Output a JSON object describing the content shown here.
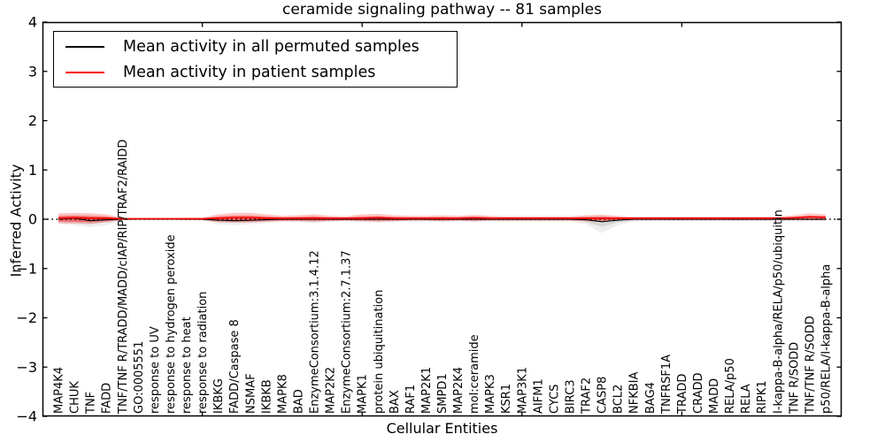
{
  "figure": {
    "title": "ceramide signaling pathway -- 81 samples",
    "xlabel": "Cellular Entities",
    "ylabel": "Inferred Activity"
  },
  "legend": {
    "items": [
      {
        "label": "Mean activity in all permuted samples",
        "color": "#000000"
      },
      {
        "label": "Mean activity in patient samples",
        "color": "#ff0000"
      }
    ]
  },
  "chart_data": {
    "type": "line",
    "title": "ceramide signaling pathway -- 81 samples",
    "xlabel": "Cellular Entities",
    "ylabel": "Inferred Activity",
    "ylim": [
      -4,
      4
    ],
    "xlim": [
      0,
      50
    ],
    "ytick_labels": [
      "−4",
      "−3",
      "−2",
      "−1",
      "0",
      "1",
      "2",
      "3",
      "4"
    ],
    "ytick_values": [
      -4,
      -3,
      -2,
      -1,
      0,
      1,
      2,
      3,
      4
    ],
    "xtick_positions": [
      10,
      20,
      30,
      40
    ],
    "grid": false,
    "legend_position": "upper left",
    "zero_reference_line": {
      "value": 0,
      "style": "dotted",
      "color": "#000000"
    },
    "categories": [
      "MAP4K4",
      "CHUK",
      "TNF",
      "FADD",
      "TNF/TNF R/TRADD/MADD/cIAP/RIP/TRAF2/RAIDD",
      "GO:0005551",
      "response to UV",
      "response to hydrogen peroxide",
      "response to heat",
      "response to radiation",
      "IKBKG",
      "FADD/Caspase 8",
      "NSMAF",
      "IKBKB",
      "MAPK8",
      "BAD",
      "EnzymeConsortium:3.1.4.12",
      "MAP2K2",
      "EnzymeConsortium:2.7.1.37",
      "MAPK1",
      "protein ubiquitination",
      "BAX",
      "RAF1",
      "MAP2K1",
      "SMPD1",
      "MAP2K4",
      "mol:ceramide",
      "MAPK3",
      "KSR1",
      "MAP3K1",
      "AIFM1",
      "CYCS",
      "BIRC3",
      "TRAF2",
      "CASP8",
      "BCL2",
      "NFKBIA",
      "BAG4",
      "TNFRSF1A",
      "TRADD",
      "CRADD",
      "MADD",
      "RELA/p50",
      "RELA",
      "RIPK1",
      "I-kappa-B-alpha/RELA/p50/ubiquitin",
      "TNF R/SODD",
      "TNF/TNF R/SODD",
      "p50/RELA/I-kappa-B-alpha"
    ],
    "series": [
      {
        "name": "Mean activity in all permuted samples",
        "color": "#000000",
        "values": [
          0,
          0.02,
          -0.03,
          -0.01,
          0,
          0,
          0,
          0,
          0,
          0,
          -0.02,
          -0.03,
          -0.02,
          -0.01,
          0,
          0,
          0,
          0,
          0,
          0,
          0,
          0,
          0,
          0,
          0,
          0,
          0,
          0,
          0,
          0,
          0,
          0,
          0,
          -0.01,
          -0.05,
          -0.02,
          0,
          0,
          0,
          0,
          0,
          0,
          0,
          0,
          0,
          0,
          0,
          0,
          0
        ]
      },
      {
        "name": "Mean activity in patient samples",
        "color": "#ff0000",
        "values": [
          0.02,
          0.03,
          0.02,
          0.02,
          0.01,
          0.01,
          0.01,
          0.01,
          0.01,
          0.01,
          0.02,
          0.03,
          0.03,
          0.02,
          0.02,
          0.02,
          0.02,
          0.02,
          0.02,
          0.02,
          0.03,
          0.02,
          0.02,
          0.02,
          0.02,
          0.02,
          0.03,
          0.02,
          0.02,
          0.02,
          0.02,
          0.02,
          0.02,
          0.02,
          0.02,
          0.02,
          0.02,
          0.02,
          0.02,
          0.02,
          0.02,
          0.02,
          0.02,
          0.02,
          0.02,
          0.02,
          0.03,
          0.05,
          0.04
        ]
      }
    ],
    "bands": [
      {
        "name": "permuted-confidence-band",
        "color": "#999999",
        "upper": [
          0.08,
          0.1,
          0.08,
          0.06,
          0.02,
          0.01,
          0.01,
          0.01,
          0.01,
          0.02,
          0.06,
          0.08,
          0.08,
          0.06,
          0.04,
          0.05,
          0.06,
          0.04,
          0.04,
          0.05,
          0.06,
          0.05,
          0.04,
          0.04,
          0.05,
          0.04,
          0.05,
          0.04,
          0.04,
          0.04,
          0.04,
          0.04,
          0.04,
          0.06,
          0.08,
          0.05,
          0.03,
          0.03,
          0.03,
          0.03,
          0.03,
          0.03,
          0.03,
          0.03,
          0.03,
          0.03,
          0.03,
          0.04,
          0.04
        ],
        "lower": [
          -0.1,
          -0.12,
          -0.16,
          -0.12,
          -0.03,
          -0.01,
          -0.01,
          -0.01,
          -0.01,
          -0.02,
          -0.1,
          -0.12,
          -0.1,
          -0.08,
          -0.05,
          -0.06,
          -0.08,
          -0.05,
          -0.05,
          -0.06,
          -0.07,
          -0.06,
          -0.05,
          -0.05,
          -0.06,
          -0.05,
          -0.06,
          -0.05,
          -0.05,
          -0.05,
          -0.05,
          -0.05,
          -0.05,
          -0.1,
          -0.28,
          -0.12,
          -0.05,
          -0.04,
          -0.04,
          -0.04,
          -0.04,
          -0.04,
          -0.04,
          -0.04,
          -0.04,
          -0.04,
          -0.04,
          -0.04,
          -0.04
        ]
      },
      {
        "name": "patient-confidence-band",
        "color": "#ff0000",
        "upper": [
          0.12,
          0.13,
          0.12,
          0.1,
          0.03,
          0.02,
          0.02,
          0.02,
          0.03,
          0.03,
          0.1,
          0.13,
          0.13,
          0.1,
          0.07,
          0.08,
          0.1,
          0.07,
          0.06,
          0.1,
          0.11,
          0.08,
          0.07,
          0.07,
          0.08,
          0.07,
          0.09,
          0.07,
          0.06,
          0.06,
          0.06,
          0.06,
          0.06,
          0.08,
          0.09,
          0.07,
          0.05,
          0.05,
          0.05,
          0.05,
          0.05,
          0.05,
          0.05,
          0.05,
          0.05,
          0.05,
          0.08,
          0.12,
          0.1
        ],
        "lower": [
          -0.08,
          -0.09,
          -0.1,
          -0.06,
          -0.02,
          -0.01,
          -0.01,
          -0.01,
          -0.02,
          -0.02,
          -0.06,
          -0.07,
          -0.07,
          -0.05,
          -0.04,
          -0.04,
          -0.05,
          -0.04,
          -0.03,
          -0.04,
          -0.05,
          -0.04,
          -0.03,
          -0.03,
          -0.04,
          -0.03,
          -0.04,
          -0.03,
          -0.03,
          -0.03,
          -0.03,
          -0.03,
          -0.03,
          -0.04,
          -0.05,
          -0.03,
          -0.02,
          -0.02,
          -0.02,
          -0.02,
          -0.02,
          -0.02,
          -0.02,
          -0.02,
          -0.02,
          -0.02,
          -0.02,
          -0.02,
          -0.02
        ]
      }
    ]
  }
}
